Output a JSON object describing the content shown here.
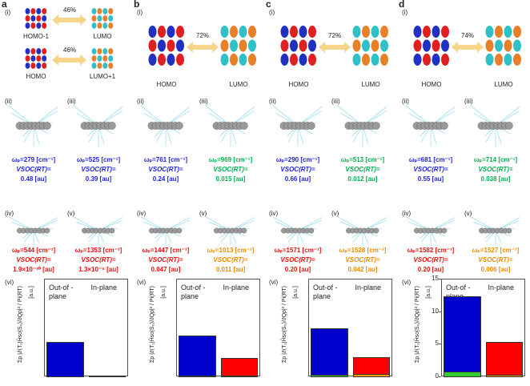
{
  "panels": [
    {
      "letter": "a",
      "numeral": "(i)",
      "pairs": [
        {
          "from": "HOMO-1",
          "to": "LUMO",
          "pct": "46%"
        },
        {
          "from": "HOMO",
          "to": "LUMO+1",
          "pct": "46%"
        }
      ],
      "modes": [
        {
          "numeral": "(ii)",
          "omega": "ωₚ=279 [cm⁻¹]",
          "vsoc": "VSOC(RT)=",
          "value": "0.48 [au]",
          "color": "#1f1fe0"
        },
        {
          "numeral": "(iii)",
          "omega": "ωₚ=525 [cm⁻¹]",
          "vsoc": "VSOC(RT)=",
          "value": "0.39 [au]",
          "color": "#1f1fe0"
        },
        {
          "numeral": "(iv)",
          "omega": "ωₚ=544 [cm⁻¹]",
          "vsoc": "VSOC(RT)=",
          "value": "1.9×10⁻¹⁰ [au]",
          "color": "#e81010"
        },
        {
          "numeral": "(v)",
          "omega": "ωₚ=1353 [cm⁻¹]",
          "vsoc": "VSOC(RT)=",
          "value": "1.3×10⁻⁵ [au]",
          "color": "#e81010"
        }
      ],
      "chart": {
        "type": "bar",
        "numeral": "(vi)",
        "y_label": "Σp |∂⟨T₁|Ĥso|S₀⟩/∂Qp|² / Pi(RT)",
        "y_unit": "[a.u.]",
        "categories": [
          "Out-of -plane",
          "In-plane"
        ],
        "ylim": [
          0,
          15
        ],
        "series": [
          {
            "colors": [
              "#33cc33",
              "#ff9900"
            ],
            "values": [
              0,
              0
            ]
          },
          {
            "colors": [
              "#0000cc",
              "#ff0000"
            ],
            "values": [
              5.2,
              0.05
            ]
          }
        ]
      }
    },
    {
      "letter": "b",
      "numeral": "(i)",
      "pairs": [
        {
          "from": "HOMO",
          "to": "LUMO",
          "pct": "72%"
        }
      ],
      "modes": [
        {
          "numeral": "(ii)",
          "omega": "ωₚ=761 [cm⁻¹]",
          "vsoc": "VSOC(RT)=",
          "value": "0.24 [au]",
          "color": "#1f1fe0"
        },
        {
          "numeral": "(iii)",
          "omega": "ωₚ=969 [cm⁻¹]",
          "vsoc": "VSOC(RT)=",
          "value": "0.015 [au]",
          "color": "#00b050"
        },
        {
          "numeral": "(iv)",
          "omega": "ωₚ=1447 [cm⁻¹]",
          "vsoc": "VSOC(RT)=",
          "value": "0.047 [au]",
          "color": "#e81010"
        },
        {
          "numeral": "(v)",
          "omega": "ωₚ=1013 [cm⁻¹]",
          "vsoc": "VSOC(RT)=",
          "value": "0.011 [au]",
          "color": "#f08c00"
        }
      ],
      "chart": {
        "type": "bar",
        "numeral": "(vi)",
        "y_label": "Σp |∂⟨T₁|Ĥso|S₀⟩/∂Qp|² / Pi(RT)",
        "y_unit": "[a.u.]",
        "categories": [
          "Out-of -plane",
          "In-plane"
        ],
        "ylim": [
          0,
          15
        ],
        "series": [
          {
            "colors": [
              "#33cc33",
              "#ff9900"
            ],
            "values": [
              0.1,
              0.1
            ]
          },
          {
            "colors": [
              "#0000cc",
              "#ff0000"
            ],
            "values": [
              6.0,
              2.6
            ]
          }
        ]
      }
    },
    {
      "letter": "c",
      "numeral": "(i)",
      "pairs": [
        {
          "from": "HOMO",
          "to": "LUMO",
          "pct": "72%"
        }
      ],
      "modes": [
        {
          "numeral": "(ii)",
          "omega": "ωₚ=290 [cm⁻¹]",
          "vsoc": "VSOC(RT)=",
          "value": "0.66 [au]",
          "color": "#1f1fe0"
        },
        {
          "numeral": "(iii)",
          "omega": "ωₚ=513 [cm⁻¹]",
          "vsoc": "VSOC(RT)=",
          "value": "0.012 [au]",
          "color": "#00b050"
        },
        {
          "numeral": "(iv)",
          "omega": "ωₚ=1571 [cm⁻¹]",
          "vsoc": "VSOC(RT)=",
          "value": "0.20 [au]",
          "color": "#e81010"
        },
        {
          "numeral": "(v)",
          "omega": "ωₚ=1528 [cm⁻¹]",
          "vsoc": "VSOC(RT)=",
          "value": "0.042 [au]",
          "color": "#f08c00"
        }
      ],
      "chart": {
        "type": "bar",
        "numeral": "(vi)",
        "y_label": "Σp |∂⟨T₁|Ĥso|S₀⟩/∂Qp|² / Pi(RT)",
        "y_unit": "[a.u.]",
        "categories": [
          "Out-of -plane",
          "In-plane"
        ],
        "ylim": [
          0,
          15
        ],
        "series": [
          {
            "colors": [
              "#33cc33",
              "#ff9900"
            ],
            "values": [
              0.3,
              0.4
            ]
          },
          {
            "colors": [
              "#0000cc",
              "#ff0000"
            ],
            "values": [
              6.9,
              2.4
            ]
          }
        ]
      }
    },
    {
      "letter": "d",
      "numeral": "(i)",
      "pairs": [
        {
          "from": "HOMO",
          "to": "LUMO",
          "pct": "74%"
        }
      ],
      "modes": [
        {
          "numeral": "(ii)",
          "omega": "ωₚ=681 [cm⁻¹]",
          "vsoc": "VSOC(RT)=",
          "value": "0.55 [au]",
          "color": "#1f1fe0"
        },
        {
          "numeral": "(iii)",
          "omega": "ωₚ=714 [cm⁻¹]",
          "vsoc": "VSOC(RT)=",
          "value": "0.038 [au]",
          "color": "#00b050"
        },
        {
          "numeral": "(iv)",
          "omega": "ωₚ=1582 [cm⁻¹]",
          "vsoc": "VSOC(RT)=",
          "value": "0.20 [au]",
          "color": "#e81010"
        },
        {
          "numeral": "(v)",
          "omega": "ωₚ=1527 [cm⁻¹]",
          "vsoc": "VSOC(RT)=",
          "value": "0.006 [au]",
          "color": "#f08c00"
        }
      ],
      "chart": {
        "type": "bar",
        "numeral": "(vi)",
        "y_label": "Σp |∂⟨T₁|Ĥso|S₀⟩/∂Qp|² / Pi(RT)",
        "y_unit": "[a.u.]",
        "categories": [
          "Out-of -plane",
          "In-plane"
        ],
        "ylim": [
          0,
          15
        ],
        "yticks": [
          0,
          5,
          10,
          15
        ],
        "series": [
          {
            "colors": [
              "#33cc33",
              "#ff9900"
            ],
            "values": [
              0.7,
              0.3
            ]
          },
          {
            "colors": [
              "#0000cc",
              "#ff0000"
            ],
            "values": [
              11.5,
              4.9
            ]
          }
        ]
      }
    }
  ]
}
